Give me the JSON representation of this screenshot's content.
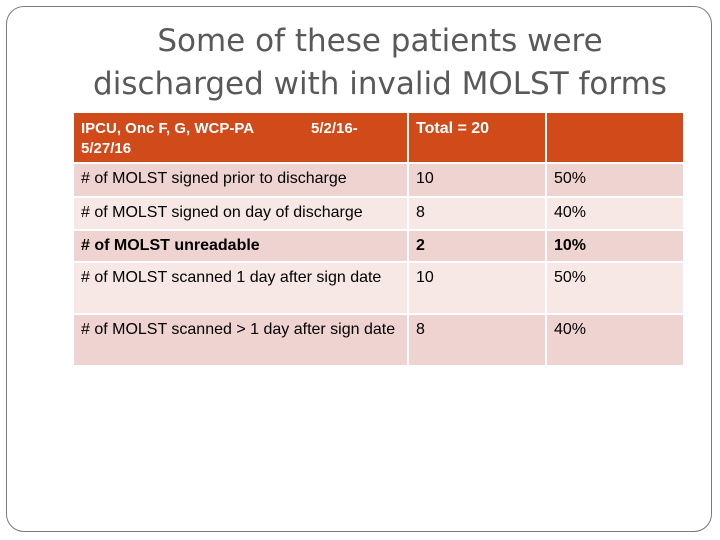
{
  "slide": {
    "title_line1": "Some of these patients were",
    "title_line2": "discharged with invalid MOLST forms"
  },
  "table": {
    "header": {
      "label": "IPCU, Onc F, G, WCP-PA",
      "date_range": "5/2/16- 5/27/16",
      "total": "Total = 20",
      "pct": ""
    },
    "rows": [
      {
        "label": "# of MOLST signed prior to discharge",
        "count": "10",
        "percent": "50%"
      },
      {
        "label": "# of MOLST signed on day of discharge",
        "count": "8",
        "percent": "40%"
      },
      {
        "label": "# of MOLST unreadable",
        "count": "2",
        "percent": "10%"
      },
      {
        "label": "# of MOLST scanned 1 day after sign date",
        "count": "10",
        "percent": "50%"
      },
      {
        "label": "# of MOLST scanned > 1 day after sign date",
        "count": "8",
        "percent": "40%"
      }
    ]
  },
  "colors": {
    "header_bg": "#d04a1a",
    "row_dark": "#efd3d0",
    "row_light": "#f7e8e6",
    "title_text": "#595959"
  }
}
